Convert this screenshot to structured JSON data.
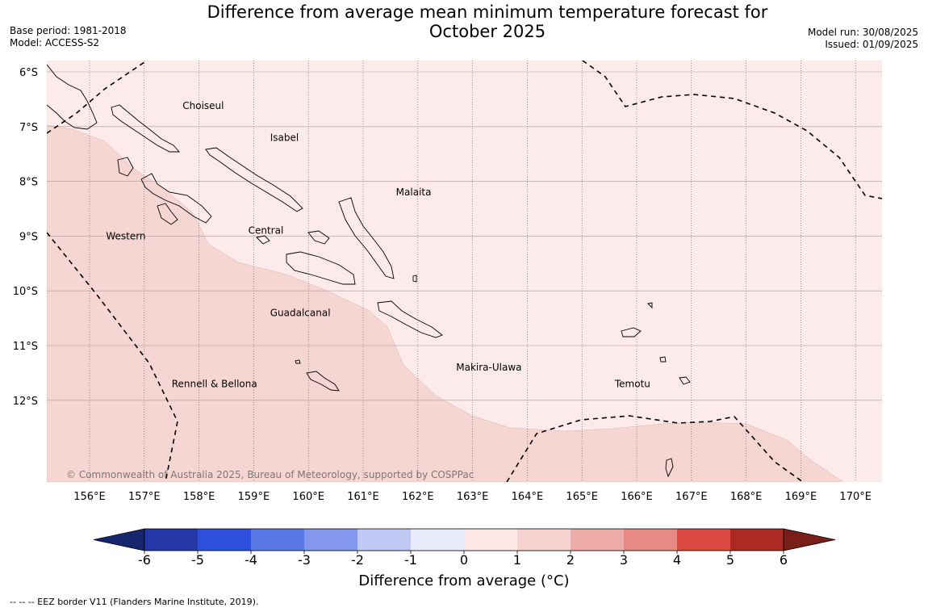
{
  "title": {
    "line1": "Difference from average mean minimum temperature forecast for",
    "line2": "October 2025"
  },
  "meta_left": {
    "base_period": "Base period: 1981-2018",
    "model": "Model: ACCESS-S2"
  },
  "meta_right": {
    "model_run": "Model run: 30/08/2025",
    "issued": "Issued: 01/09/2025"
  },
  "map": {
    "lat_labels": [
      "6°S",
      "7°S",
      "8°S",
      "9°S",
      "10°S",
      "11°S",
      "12°S"
    ],
    "lon_labels": [
      "156°E",
      "157°E",
      "158°E",
      "159°E",
      "160°E",
      "161°E",
      "162°E",
      "163°E",
      "164°E",
      "165°E",
      "166°E",
      "167°E",
      "168°E",
      "169°E",
      "170°E"
    ],
    "province_labels": [
      {
        "name": "Choiseul",
        "lon": 157.7,
        "lat": -6.62
      },
      {
        "name": "Isabel",
        "lon": 159.3,
        "lat": -7.2
      },
      {
        "name": "Malaita",
        "lon": 161.6,
        "lat": -8.2
      },
      {
        "name": "Western",
        "lon": 156.3,
        "lat": -9.0
      },
      {
        "name": "Central",
        "lon": 158.9,
        "lat": -8.9
      },
      {
        "name": "Guadalcanal",
        "lon": 159.3,
        "lat": -10.4
      },
      {
        "name": "Makira-Ulawa",
        "lon": 162.7,
        "lat": -11.4
      },
      {
        "name": "Temotu",
        "lon": 165.6,
        "lat": -11.7
      },
      {
        "name": "Rennell & Bellona",
        "lon": 157.5,
        "lat": -11.7
      }
    ],
    "copyright": "© Commonwealth of Australia 2025, Bureau of Meteorology, supported by COSPPac"
  },
  "colorbar": {
    "tick_labels": [
      "-6",
      "-5",
      "-4",
      "-3",
      "-2",
      "-1",
      "0",
      "1",
      "2",
      "3",
      "4",
      "5",
      "6"
    ],
    "colors": [
      "#2438a8",
      "#2e4fdc",
      "#5a78e6",
      "#8398ee",
      "#c0c8f4",
      "#e8ebfc",
      "#fce9e7",
      "#f6d3d0",
      "#eeaca8",
      "#e78a83",
      "#db4a42",
      "#ab2a23"
    ],
    "under_color": "#16266e",
    "over_color": "#7a1f18",
    "label": "Difference from average (°C)"
  },
  "map_colors": {
    "band_0_1": "#fcebea",
    "band_1_2": "#f6d6d3"
  },
  "footnote": "--  --  -- EEZ border V11 (Flanders Marine Institute, 2019)."
}
